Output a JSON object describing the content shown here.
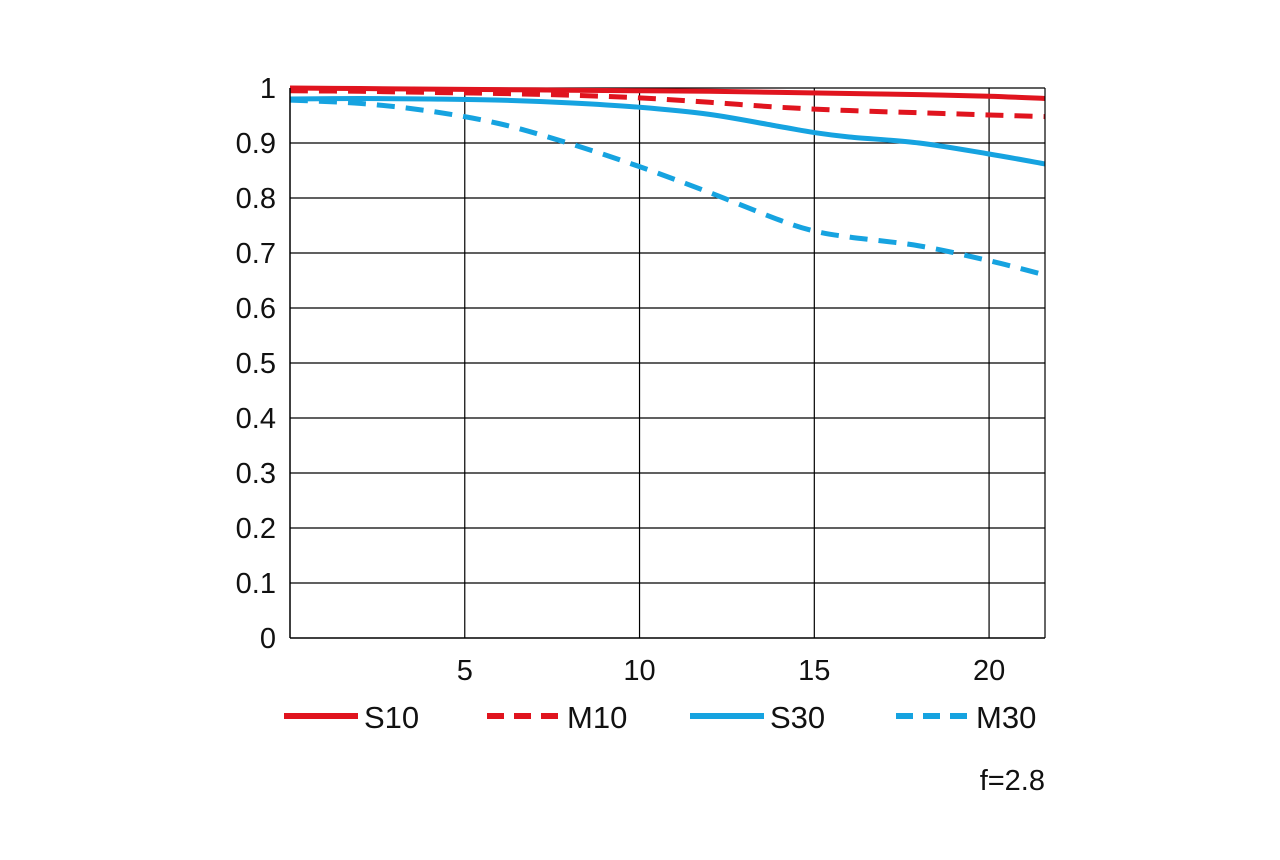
{
  "chart_data": {
    "type": "line",
    "title": "",
    "xlabel": "",
    "ylabel": "",
    "xlim": [
      0,
      21.6
    ],
    "ylim": [
      0,
      1
    ],
    "grid": true,
    "legend_position": "bottom",
    "x_ticks": [
      5,
      10,
      15,
      20
    ],
    "x_tick_labels": [
      "5",
      "10",
      "15",
      "20"
    ],
    "y_ticks": [
      0,
      0.1,
      0.2,
      0.3,
      0.4,
      0.5,
      0.6,
      0.7,
      0.8,
      0.9,
      1
    ],
    "y_tick_labels": [
      "0",
      "0.1",
      "0.2",
      "0.3",
      "0.4",
      "0.5",
      "0.6",
      "0.7",
      "0.8",
      "0.9",
      "1"
    ],
    "annotation": "f=2.8",
    "series": [
      {
        "name": "S10",
        "color": "#e0141e",
        "dashed": false,
        "x": [
          0,
          2,
          4,
          6,
          8,
          10,
          12,
          14,
          16,
          18,
          20,
          21.6
        ],
        "y": [
          1.0,
          0.999,
          0.998,
          0.997,
          0.996,
          0.995,
          0.994,
          0.992,
          0.99,
          0.988,
          0.985,
          0.981
        ]
      },
      {
        "name": "M10",
        "color": "#e0141e",
        "dashed": true,
        "x": [
          0,
          2,
          4,
          6,
          8,
          10,
          12,
          14,
          16,
          18,
          20,
          21.6
        ],
        "y": [
          0.995,
          0.994,
          0.992,
          0.99,
          0.987,
          0.982,
          0.974,
          0.965,
          0.959,
          0.955,
          0.951,
          0.948
        ]
      },
      {
        "name": "S30",
        "color": "#16a3e0",
        "dashed": false,
        "x": [
          0,
          2,
          4,
          6,
          8,
          10,
          12,
          14,
          15,
          16,
          18,
          20,
          21.6
        ],
        "y": [
          0.98,
          0.981,
          0.98,
          0.978,
          0.973,
          0.965,
          0.952,
          0.93,
          0.919,
          0.911,
          0.9,
          0.88,
          0.862
        ]
      },
      {
        "name": "M30",
        "color": "#16a3e0",
        "dashed": true,
        "x": [
          0,
          2,
          4,
          6,
          8,
          10,
          12,
          14,
          15,
          16,
          18,
          20,
          21.6
        ],
        "y": [
          0.978,
          0.972,
          0.958,
          0.935,
          0.899,
          0.857,
          0.81,
          0.76,
          0.74,
          0.729,
          0.713,
          0.686,
          0.66
        ]
      }
    ]
  }
}
